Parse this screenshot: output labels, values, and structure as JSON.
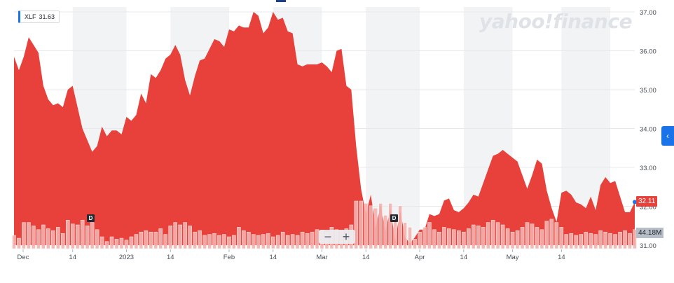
{
  "legend": {
    "ticker": "XLF",
    "value": "31.63"
  },
  "brand": "yahoo!finance",
  "price_tag": "32.11",
  "volume_tag": "44.18M",
  "zoom": {
    "minus": "−",
    "plus": "+"
  },
  "dividend_marker": "D",
  "expand_icon": "‹",
  "colors": {
    "area": "#e8403a",
    "volume_bar": "#f3b3b0",
    "band": "#f2f3f5",
    "accent": "#1a73e8"
  },
  "chart_data": {
    "type": "area",
    "series": [
      {
        "values": [
          35.85,
          35.5,
          35.85,
          36.35,
          36.15,
          35.95,
          35.1,
          34.75,
          34.6,
          34.65,
          34.55,
          35.0,
          35.1,
          34.55,
          34.0,
          33.7,
          33.4,
          33.55,
          34.05,
          33.8,
          33.95,
          33.95,
          33.85,
          34.3,
          34.2,
          34.35,
          34.9,
          34.65,
          35.4,
          35.3,
          35.5,
          35.8,
          35.9,
          36.15,
          35.9,
          35.25,
          34.85,
          35.35,
          35.75,
          35.8,
          36.05,
          36.3,
          36.25,
          36.1,
          36.55,
          36.5,
          36.65,
          36.6,
          36.6,
          37.0,
          36.9,
          36.45,
          36.6,
          37.0,
          36.8,
          36.85,
          36.5,
          36.45,
          35.65,
          35.6,
          35.65,
          35.65,
          35.65,
          35.7,
          35.6,
          35.45,
          36.0,
          36.05,
          35.1,
          35.0,
          33.55,
          32.45,
          31.8,
          32.3,
          31.45,
          32.05,
          31.35,
          31.95,
          31.1,
          31.9,
          31.2,
          31.05,
          31.2,
          31.4,
          31.4,
          31.8,
          31.75,
          31.8,
          32.15,
          32.2,
          31.9,
          31.85,
          31.95,
          32.1,
          32.3,
          32.25,
          32.6,
          32.95,
          33.3,
          33.35,
          33.45,
          33.35,
          33.25,
          33.15,
          32.8,
          32.45,
          32.8,
          33.2,
          33.1,
          32.4,
          31.95,
          31.6,
          32.35,
          32.4,
          32.3,
          32.1,
          32.05,
          31.95,
          32.25,
          31.9,
          32.55,
          32.75,
          32.6,
          32.65,
          32.25,
          31.85,
          31.85,
          32.11
        ]
      }
    ],
    "volume": [
      0.28,
      0.22,
      0.55,
      0.55,
      0.48,
      0.4,
      0.5,
      0.42,
      0.38,
      0.45,
      0.32,
      0.6,
      0.52,
      0.5,
      0.6,
      0.48,
      0.55,
      0.4,
      0.25,
      0.15,
      0.25,
      0.2,
      0.22,
      0.18,
      0.25,
      0.3,
      0.35,
      0.38,
      0.35,
      0.35,
      0.42,
      0.3,
      0.48,
      0.55,
      0.5,
      0.55,
      0.48,
      0.35,
      0.38,
      0.28,
      0.3,
      0.32,
      0.28,
      0.3,
      0.25,
      0.28,
      0.45,
      0.38,
      0.35,
      0.3,
      0.28,
      0.3,
      0.32,
      0.25,
      0.28,
      0.35,
      0.28,
      0.3,
      0.28,
      0.35,
      0.32,
      0.35,
      0.4,
      0.38,
      0.35,
      0.45,
      0.4,
      0.38,
      0.42,
      0.5,
      1.0,
      1.0,
      0.95,
      0.9,
      0.85,
      0.95,
      0.7,
      0.95,
      0.6,
      0.9,
      0.55,
      0.45,
      0.2,
      0.35,
      0.45,
      0.55,
      0.4,
      0.35,
      0.45,
      0.42,
      0.4,
      0.38,
      0.35,
      0.42,
      0.5,
      0.48,
      0.45,
      0.55,
      0.6,
      0.55,
      0.5,
      0.42,
      0.35,
      0.38,
      0.45,
      0.55,
      0.52,
      0.45,
      0.4,
      0.58,
      0.62,
      0.55,
      0.45,
      0.3,
      0.32,
      0.28,
      0.3,
      0.35,
      0.32,
      0.3,
      0.38,
      0.35,
      0.32,
      0.3,
      0.35,
      0.38,
      0.32,
      0.4
    ],
    "y_ticks": [
      "37.00",
      "36.00",
      "35.00",
      "34.00",
      "33.00",
      "32.00",
      "31.00"
    ],
    "ylim": [
      31.0,
      37.0
    ],
    "x_ticks": [
      "Dec",
      "14",
      "2023",
      "14",
      "Feb",
      "14",
      "Mar",
      "14",
      "Apr",
      "14",
      "May",
      "14"
    ],
    "x_tick_index": [
      0,
      12,
      23,
      32,
      44,
      53,
      63,
      72,
      83,
      92,
      102,
      112
    ],
    "bands": [
      [
        12,
        23
      ],
      [
        32,
        44
      ],
      [
        53,
        63
      ],
      [
        72,
        83
      ],
      [
        92,
        102
      ],
      [
        112,
        122
      ]
    ],
    "dividends": [
      15,
      74
    ],
    "grid": true
  }
}
